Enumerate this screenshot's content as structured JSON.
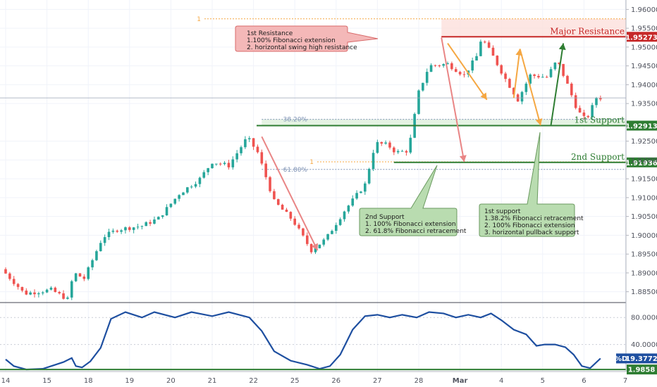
{
  "chart_data": [
    {
      "type": "candlestick",
      "pane": "price",
      "ylim": [
        1.8825,
        1.9625
      ],
      "x_tick_labels": [
        "14",
        "15",
        "18",
        "19",
        "20",
        "21",
        "22",
        "25",
        "26",
        "27",
        "28",
        "Mar",
        "4",
        "5",
        "6",
        "7"
      ],
      "y_tick_labels": [
        "1.96000",
        "1.95500",
        "1.95000",
        "1.94500",
        "1.94000",
        "1.93500",
        "1.92500",
        "1.92000",
        "1.91500",
        "1.91000",
        "1.90500",
        "1.90000",
        "1.89500",
        "1.89000",
        "1.88500"
      ],
      "y_tick_values": [
        1.96,
        1.955,
        1.95,
        1.945,
        1.94,
        1.935,
        1.925,
        1.92,
        1.915,
        1.91,
        1.905,
        1.9,
        1.895,
        1.89,
        1.885
      ],
      "current_price_line": 1.9365,
      "levels": [
        {
          "label": "Major Resistance",
          "value": 1.95273,
          "tag": "1.95273",
          "color": "#c62828"
        },
        {
          "label": "1st Support",
          "value": 1.92913,
          "tag": "1.92913",
          "color": "#2e7d32"
        },
        {
          "label": "2nd Support",
          "value": 1.91936,
          "tag": "1.91936",
          "color": "#2e7d32"
        }
      ],
      "fib_levels": [
        {
          "label": "38.20%",
          "value": 1.9308
        },
        {
          "label": "61.80%",
          "value": 1.9175
        },
        {
          "label": "1",
          "value": 1.9575
        },
        {
          "label": "1",
          "value": 1.9195
        }
      ],
      "key_points": [
        {
          "x": 0.0,
          "y": 1.891
        },
        {
          "x": 0.35,
          "y": 1.887
        },
        {
          "x": 0.55,
          "y": 1.8845
        },
        {
          "x": 1.2,
          "y": 1.8855
        },
        {
          "x": 1.6,
          "y": 1.883
        },
        {
          "x": 1.75,
          "y": 1.89
        },
        {
          "x": 2.0,
          "y": 1.8885
        },
        {
          "x": 2.45,
          "y": 1.8995
        },
        {
          "x": 2.8,
          "y": 1.9015
        },
        {
          "x": 3.4,
          "y": 1.9025
        },
        {
          "x": 3.8,
          "y": 1.9045
        },
        {
          "x": 4.3,
          "y": 1.911
        },
        {
          "x": 4.8,
          "y": 1.915
        },
        {
          "x": 5.1,
          "y": 1.9195
        },
        {
          "x": 5.5,
          "y": 1.9185
        },
        {
          "x": 5.95,
          "y": 1.926
        },
        {
          "x": 6.2,
          "y": 1.922
        },
        {
          "x": 6.6,
          "y": 1.909
        },
        {
          "x": 7.05,
          "y": 1.904
        },
        {
          "x": 7.5,
          "y": 1.896
        },
        {
          "x": 7.85,
          "y": 1.899
        },
        {
          "x": 8.3,
          "y": 1.9065
        },
        {
          "x": 8.8,
          "y": 1.9135
        },
        {
          "x": 9.05,
          "y": 1.9245
        },
        {
          "x": 9.35,
          "y": 1.924
        },
        {
          "x": 9.55,
          "y": 1.922
        },
        {
          "x": 9.85,
          "y": 1.9225
        },
        {
          "x": 10.1,
          "y": 1.938
        },
        {
          "x": 10.35,
          "y": 1.945
        },
        {
          "x": 10.8,
          "y": 1.9455
        },
        {
          "x": 11.2,
          "y": 1.9425
        },
        {
          "x": 11.5,
          "y": 1.9475
        },
        {
          "x": 11.62,
          "y": 1.9525
        },
        {
          "x": 11.9,
          "y": 1.9475
        },
        {
          "x": 12.2,
          "y": 1.9415
        },
        {
          "x": 12.5,
          "y": 1.936
        },
        {
          "x": 12.8,
          "y": 1.9425
        },
        {
          "x": 13.2,
          "y": 1.942
        },
        {
          "x": 13.45,
          "y": 1.9465
        },
        {
          "x": 13.7,
          "y": 1.94
        },
        {
          "x": 13.95,
          "y": 1.933
        },
        {
          "x": 14.15,
          "y": 1.9305
        },
        {
          "x": 14.4,
          "y": 1.9365
        }
      ]
    },
    {
      "type": "line",
      "pane": "oscillator",
      "ylim": [
        0,
        100
      ],
      "y_tick_labels": [
        "80.0000",
        "40.0000"
      ],
      "y_tick_values": [
        80,
        40
      ],
      "current_value": "19.3772",
      "value_prefix": "%D",
      "hline": 3,
      "hline_tag": "1.9858",
      "points": [
        {
          "x": 0.0,
          "y": 18
        },
        {
          "x": 0.2,
          "y": 8
        },
        {
          "x": 0.5,
          "y": 3
        },
        {
          "x": 0.9,
          "y": 4
        },
        {
          "x": 1.2,
          "y": 10
        },
        {
          "x": 1.4,
          "y": 14
        },
        {
          "x": 1.6,
          "y": 20
        },
        {
          "x": 1.7,
          "y": 8
        },
        {
          "x": 1.85,
          "y": 6
        },
        {
          "x": 2.05,
          "y": 15
        },
        {
          "x": 2.3,
          "y": 35
        },
        {
          "x": 2.55,
          "y": 78
        },
        {
          "x": 2.9,
          "y": 88
        },
        {
          "x": 3.3,
          "y": 80
        },
        {
          "x": 3.6,
          "y": 88
        },
        {
          "x": 4.1,
          "y": 80
        },
        {
          "x": 4.5,
          "y": 88
        },
        {
          "x": 5.0,
          "y": 82
        },
        {
          "x": 5.4,
          "y": 88
        },
        {
          "x": 5.9,
          "y": 80
        },
        {
          "x": 6.2,
          "y": 60
        },
        {
          "x": 6.5,
          "y": 30
        },
        {
          "x": 6.9,
          "y": 16
        },
        {
          "x": 7.3,
          "y": 10
        },
        {
          "x": 7.6,
          "y": 4
        },
        {
          "x": 7.85,
          "y": 8
        },
        {
          "x": 8.1,
          "y": 25
        },
        {
          "x": 8.4,
          "y": 62
        },
        {
          "x": 8.7,
          "y": 82
        },
        {
          "x": 9.0,
          "y": 84
        },
        {
          "x": 9.3,
          "y": 80
        },
        {
          "x": 9.6,
          "y": 84
        },
        {
          "x": 9.95,
          "y": 80
        },
        {
          "x": 10.25,
          "y": 88
        },
        {
          "x": 10.6,
          "y": 86
        },
        {
          "x": 10.9,
          "y": 80
        },
        {
          "x": 11.2,
          "y": 84
        },
        {
          "x": 11.5,
          "y": 80
        },
        {
          "x": 11.75,
          "y": 86
        },
        {
          "x": 12.0,
          "y": 76
        },
        {
          "x": 12.3,
          "y": 62
        },
        {
          "x": 12.6,
          "y": 55
        },
        {
          "x": 12.85,
          "y": 38
        },
        {
          "x": 13.05,
          "y": 40
        },
        {
          "x": 13.3,
          "y": 40
        },
        {
          "x": 13.55,
          "y": 36
        },
        {
          "x": 13.75,
          "y": 25
        },
        {
          "x": 13.95,
          "y": 8
        },
        {
          "x": 14.15,
          "y": 5
        },
        {
          "x": 14.4,
          "y": 19.4
        }
      ]
    }
  ],
  "annotations": {
    "resistance": {
      "title": "1st Resistance",
      "lines": [
        "1.100% Fibonacci extension",
        "2. horizontal swing high resistance"
      ]
    },
    "support2": {
      "title": "2nd Support",
      "lines": [
        "1. 100% Fibonacci extension",
        "2. 61.8% Fibonacci retracement"
      ]
    },
    "support1": {
      "title": "1st support",
      "lines": [
        "1.38.2% Fibonacci retracement",
        "2. 100% Fibonacci extension",
        "3. horizontal pullback support"
      ]
    }
  },
  "colors": {
    "up": "#26a69a",
    "down": "#ef5350",
    "resistance": "#c62828",
    "support": "#2e7d32",
    "oscillator": "#1e4fa0",
    "arrow_red": "#e98585",
    "arrow_orange": "#f5a742",
    "arrow_green": "#2e7d32",
    "fib": "#7f93b5"
  }
}
